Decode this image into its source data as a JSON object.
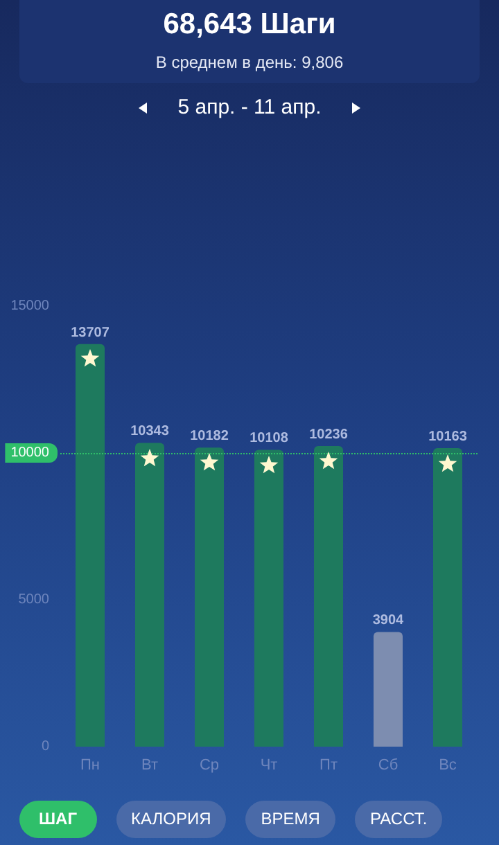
{
  "chart_data": {
    "type": "bar",
    "title": "68,643 Шаги",
    "subtitle": "В среднем в день:  9,806",
    "annotations": [
      "5 апр. - 11 апр.",
      "ШАГ",
      "КАЛОРИЯ",
      "ВРЕМЯ",
      "РАССТ."
    ],
    "categories": [
      "Пн",
      "Вт",
      "Ср",
      "Чт",
      "Пт",
      "Сб",
      "Вс"
    ],
    "values": [
      13707,
      10343,
      10182,
      10108,
      10236,
      3904,
      10163
    ],
    "colors": [
      "#1e7a5e",
      "#1e7a5e",
      "#1e7a5e",
      "#1e7a5e",
      "#1e7a5e",
      "#7d8db0",
      "#1e7a5e"
    ],
    "data_labels": true,
    "ylim": [
      0,
      15000
    ],
    "yticks": [
      0,
      5000,
      15000
    ],
    "ref_lines": [
      {
        "axis": "y",
        "value": 10000,
        "label": "10000",
        "color": "#2fbf6a",
        "line_style": "dotted"
      }
    ],
    "grid": false
  }
}
